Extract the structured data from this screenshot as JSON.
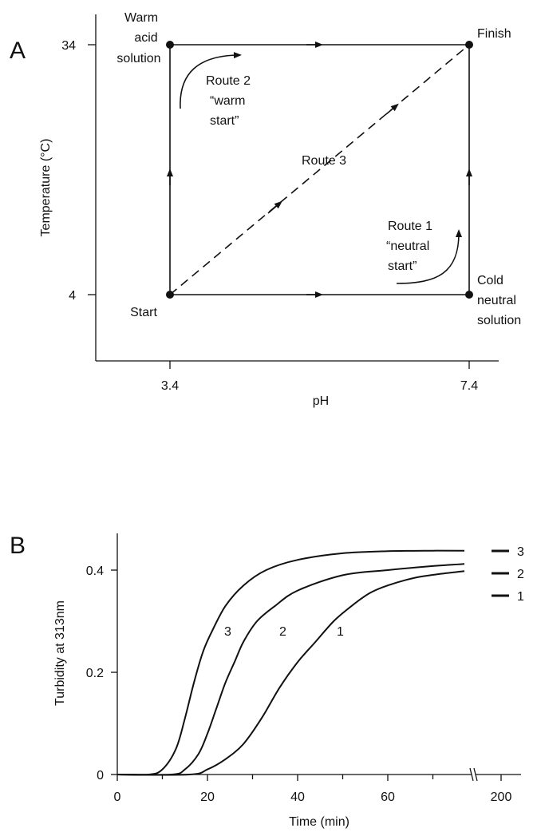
{
  "chart_data": [
    {
      "panel": "A",
      "type": "diagram",
      "xlabel": "pH",
      "ylabel": "Temperature (°C)",
      "x_ticks": [
        "3.4",
        "7.4"
      ],
      "y_ticks": [
        "34",
        "4"
      ],
      "points": [
        {
          "x": 3.4,
          "y": 4,
          "label": [
            "Start"
          ]
        },
        {
          "x": 3.4,
          "y": 34,
          "label": [
            "Warm",
            "acid",
            "solution"
          ]
        },
        {
          "x": 7.4,
          "y": 34,
          "label": [
            "Finish"
          ]
        },
        {
          "x": 7.4,
          "y": 4,
          "label": [
            "Cold",
            "neutral",
            "solution"
          ]
        }
      ],
      "routes": [
        {
          "name": "Route 1",
          "note": [
            "Route 1",
            "“neutral",
            "start”"
          ],
          "path": [
            [
              3.4,
              4
            ],
            [
              7.4,
              4
            ],
            [
              7.4,
              34
            ]
          ]
        },
        {
          "name": "Route 2",
          "note": [
            "Route 2",
            "“warm",
            "start”"
          ],
          "path": [
            [
              3.4,
              4
            ],
            [
              3.4,
              34
            ],
            [
              7.4,
              34
            ]
          ]
        },
        {
          "name": "Route 3",
          "note": [
            "Route 3"
          ],
          "path": [
            [
              3.4,
              4
            ],
            [
              7.4,
              34
            ]
          ]
        }
      ]
    },
    {
      "panel": "B",
      "type": "line",
      "xlabel": "Time (min)",
      "ylabel": "Turbidity at 313nm",
      "x_tick_labels": [
        "0",
        "20",
        "40",
        "60",
        "200"
      ],
      "y_tick_labels": [
        "0",
        "0.2",
        "0.4"
      ],
      "xlim": [
        0,
        75
      ],
      "ylim": [
        0,
        0.46
      ],
      "axis_break": true,
      "series": [
        {
          "name": "3",
          "x": [
            0,
            7,
            10,
            13,
            15,
            17,
            19,
            21,
            24,
            28,
            33,
            40,
            50,
            60,
            70,
            77
          ],
          "y": [
            0,
            0,
            0.01,
            0.05,
            0.11,
            0.18,
            0.24,
            0.28,
            0.33,
            0.37,
            0.4,
            0.42,
            0.433,
            0.437,
            0.438,
            0.438
          ]
        },
        {
          "name": "2",
          "x": [
            0,
            12,
            15,
            18,
            20,
            22,
            24,
            26,
            28,
            31,
            35,
            40,
            50,
            60,
            70,
            77
          ],
          "y": [
            0,
            0,
            0.01,
            0.04,
            0.08,
            0.13,
            0.18,
            0.22,
            0.26,
            0.3,
            0.33,
            0.36,
            0.39,
            0.4,
            0.408,
            0.412
          ]
        },
        {
          "name": "1",
          "x": [
            0,
            16,
            20,
            24,
            28,
            32,
            36,
            40,
            44,
            48,
            52,
            56,
            60,
            66,
            72,
            77
          ],
          "y": [
            0,
            0,
            0.01,
            0.03,
            0.06,
            0.11,
            0.17,
            0.22,
            0.26,
            0.3,
            0.33,
            0.355,
            0.37,
            0.385,
            0.393,
            0.398
          ]
        }
      ],
      "legend": [
        "3",
        "2",
        "1"
      ]
    }
  ]
}
